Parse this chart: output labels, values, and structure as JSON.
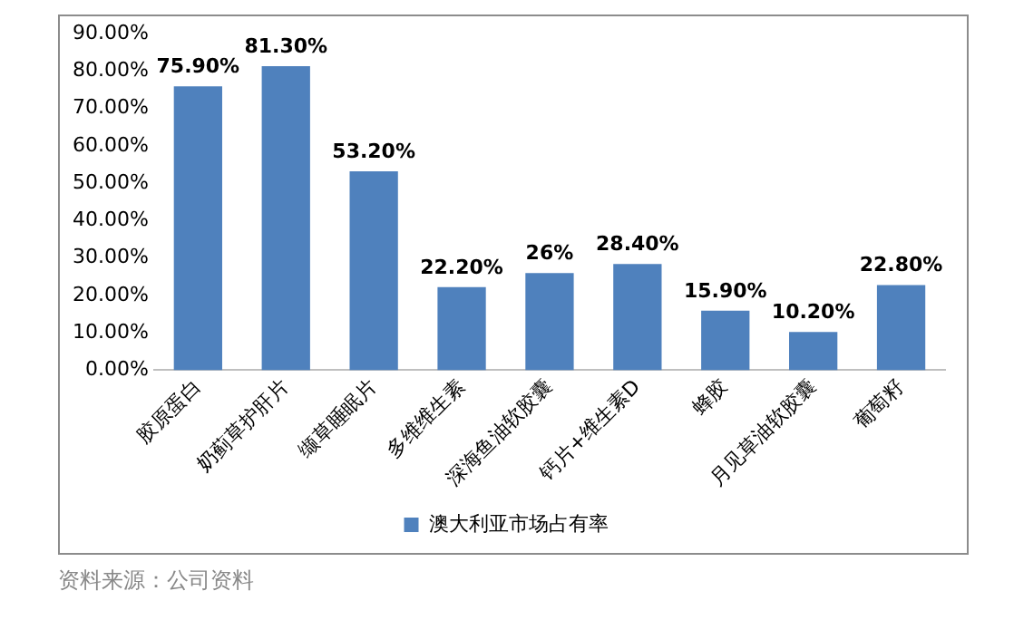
{
  "chart_data": {
    "type": "bar",
    "categories": [
      "胶原蛋白",
      "奶蓟草护肝片",
      "缬草睡眠片",
      "多维维生素",
      "深海鱼油软胶囊",
      "钙片+维生素D",
      "蜂胶",
      "月见草油软胶囊",
      "葡萄籽"
    ],
    "series": [
      {
        "name": "澳大利亚市场占有率",
        "color": "#4f81bd",
        "values": [
          75.9,
          81.3,
          53.2,
          22.2,
          26,
          28.4,
          15.9,
          10.2,
          22.8
        ],
        "value_labels": [
          "75.90%",
          "81.30%",
          "53.20%",
          "22.20%",
          "26%",
          "28.40%",
          "15.90%",
          "10.20%",
          "22.80%"
        ]
      }
    ],
    "ylim": [
      0,
      90
    ],
    "yticks": [
      {
        "value": 0,
        "label": "0.00%"
      },
      {
        "value": 10,
        "label": "10.00%"
      },
      {
        "value": 20,
        "label": "20.00%"
      },
      {
        "value": 30,
        "label": "30.00%"
      },
      {
        "value": 40,
        "label": "40.00%"
      },
      {
        "value": 50,
        "label": "50.00%"
      },
      {
        "value": 60,
        "label": "60.00%"
      },
      {
        "value": 70,
        "label": "70.00%"
      },
      {
        "value": 80,
        "label": "80.00%"
      },
      {
        "value": 90,
        "label": "90.00%"
      }
    ],
    "grid": false,
    "legend": "bottom",
    "annotations": [
      "资料来源：公司资料"
    ]
  }
}
